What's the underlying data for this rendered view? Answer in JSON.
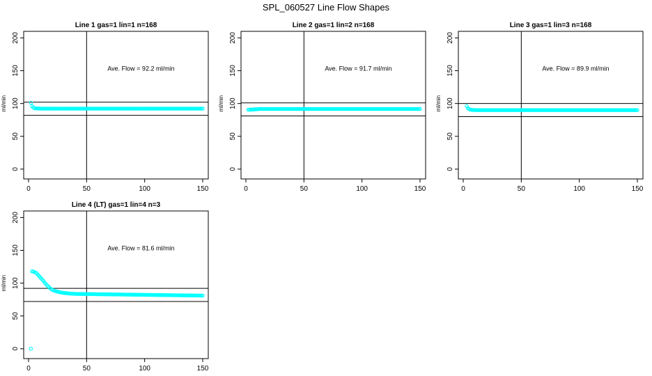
{
  "figure_title": "SPL_060527  Line Flow Shapes",
  "colors": {
    "points": "#00ffff",
    "axes": "#000000",
    "background": "#ffffff"
  },
  "chart_data": [
    {
      "type": "scatter",
      "title": "Line 1 gas=1 lin=1 n=168",
      "ylabel": "ml/min",
      "xlim": [
        0,
        150
      ],
      "ylim": [
        -15,
        210
      ],
      "xticks": [
        "0",
        "50",
        "100",
        "150"
      ],
      "yticks": [
        "0",
        "50",
        "100",
        "150",
        "200"
      ],
      "annotation": "Ave. Flow =  92.2  ml/min",
      "vline_x": 50,
      "hlines": [
        102,
        82
      ],
      "points": [
        [
          2,
          101
        ],
        [
          3,
          96
        ],
        [
          4,
          94
        ],
        [
          5,
          93
        ],
        [
          6,
          92.5
        ],
        [
          7,
          92.5
        ],
        [
          8,
          92.4
        ],
        [
          9,
          92.3
        ],
        [
          10,
          92.3
        ]
      ],
      "plateau": {
        "x_start": 11,
        "x_end": 150,
        "step": 1,
        "y": 92.2
      }
    },
    {
      "type": "scatter",
      "title": "Line 2 gas=1 lin=2 n=168",
      "ylabel": "ml/min",
      "xlim": [
        0,
        150
      ],
      "ylim": [
        -15,
        210
      ],
      "xticks": [
        "0",
        "50",
        "100",
        "150"
      ],
      "yticks": [
        "0",
        "50",
        "100",
        "150",
        "200"
      ],
      "annotation": "Ave. Flow =  91.7  ml/min",
      "vline_x": 50,
      "hlines": [
        101,
        81
      ],
      "points": [
        [
          2,
          90.5
        ],
        [
          3,
          90.6
        ],
        [
          4,
          90.7
        ],
        [
          5,
          90.8
        ],
        [
          6,
          90.9
        ],
        [
          7,
          91.0
        ],
        [
          8,
          91.1
        ],
        [
          9,
          91.2
        ],
        [
          10,
          91.3
        ]
      ],
      "plateau": {
        "x_start": 11,
        "x_end": 150,
        "step": 1,
        "y": 91.7
      }
    },
    {
      "type": "scatter",
      "title": "Line 3 gas=1 lin=3 n=168",
      "ylabel": "ml/min",
      "xlim": [
        0,
        150
      ],
      "ylim": [
        -15,
        210
      ],
      "xticks": [
        "0",
        "50",
        "100",
        "150"
      ],
      "yticks": [
        "0",
        "50",
        "100",
        "150",
        "200"
      ],
      "annotation": "Ave. Flow =  89.9  ml/min",
      "vline_x": 50,
      "hlines": [
        100,
        80
      ],
      "points": [
        [
          3,
          96
        ],
        [
          4,
          93
        ],
        [
          5,
          91.5
        ],
        [
          6,
          90.8
        ],
        [
          7,
          90.4
        ],
        [
          8,
          90.2
        ],
        [
          9,
          90.1
        ],
        [
          10,
          90.0
        ]
      ],
      "plateau": {
        "x_start": 11,
        "x_end": 150,
        "step": 1,
        "y": 89.9
      }
    },
    {
      "type": "scatter",
      "title": "Line 4 (LT) gas=1 lin=4 n=3",
      "ylabel": "ml/min",
      "xlim": [
        0,
        150
      ],
      "ylim": [
        -15,
        210
      ],
      "xticks": [
        "0",
        "50",
        "100",
        "150"
      ],
      "yticks": [
        "0",
        "50",
        "100",
        "150",
        "200"
      ],
      "annotation": "Ave. Flow =  81.6  ml/min",
      "vline_x": 50,
      "hlines": [
        92,
        72
      ],
      "points": [
        [
          2,
          0
        ],
        [
          3,
          118
        ],
        [
          4,
          117.5
        ],
        [
          5,
          117
        ],
        [
          6,
          116
        ],
        [
          7,
          115
        ],
        [
          8,
          113
        ],
        [
          9,
          111
        ],
        [
          10,
          109
        ],
        [
          11,
          107
        ],
        [
          12,
          105
        ],
        [
          13,
          103
        ],
        [
          14,
          100.5
        ],
        [
          15,
          98.5
        ],
        [
          16,
          96.5
        ],
        [
          17,
          95
        ],
        [
          18,
          93
        ],
        [
          19,
          91.5
        ],
        [
          20,
          90.5
        ],
        [
          21,
          89.5
        ],
        [
          22,
          88.5
        ],
        [
          23,
          88
        ],
        [
          24,
          87.5
        ],
        [
          25,
          87
        ],
        [
          26,
          86.5
        ],
        [
          27,
          86
        ],
        [
          28,
          85.8
        ],
        [
          29,
          85.5
        ],
        [
          30,
          85.3
        ],
        [
          31,
          85
        ],
        [
          32,
          84.8
        ],
        [
          33,
          84.6
        ],
        [
          34,
          84.4
        ],
        [
          35,
          84.2
        ],
        [
          36,
          84.1
        ],
        [
          37,
          84
        ],
        [
          38,
          83.9
        ],
        [
          39,
          83.8
        ],
        [
          40,
          83.7
        ]
      ],
      "plateau": {
        "x_start": 41,
        "x_end": 150,
        "step": 1,
        "y_start": 83.6,
        "y_end": 81.0
      }
    }
  ]
}
